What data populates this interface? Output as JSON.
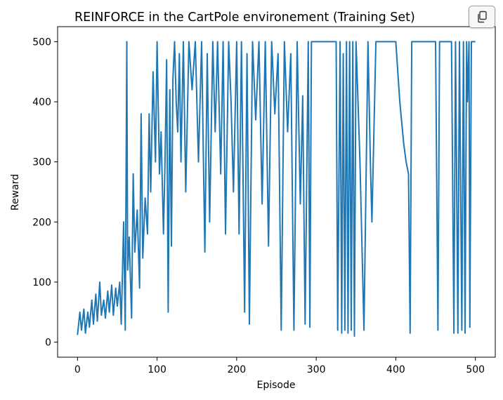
{
  "chart_data": {
    "type": "line",
    "title": "REINFORCE in the CartPole environement (Training Set)",
    "xlabel": "Episode",
    "ylabel": "Reward",
    "xlim": [
      -25,
      525
    ],
    "ylim": [
      -25,
      525
    ],
    "xticks": [
      0,
      100,
      200,
      300,
      400,
      500
    ],
    "yticks": [
      0,
      100,
      200,
      300,
      400,
      500
    ],
    "grid": false,
    "series": [
      {
        "color": "#1f77b4",
        "x": [
          0,
          3,
          5,
          8,
          10,
          13,
          15,
          18,
          20,
          23,
          25,
          28,
          30,
          33,
          35,
          38,
          40,
          43,
          45,
          48,
          50,
          53,
          55,
          58,
          60,
          62,
          63,
          65,
          68,
          70,
          72,
          75,
          78,
          80,
          82,
          85,
          88,
          90,
          92,
          95,
          98,
          100,
          103,
          105,
          108,
          110,
          112,
          114,
          116,
          118,
          120,
          122,
          124,
          126,
          128,
          130,
          133,
          136,
          140,
          144,
          148,
          152,
          156,
          160,
          163,
          166,
          170,
          173,
          176,
          180,
          183,
          186,
          190,
          193,
          196,
          200,
          203,
          206,
          210,
          213,
          216,
          220,
          224,
          228,
          232,
          236,
          240,
          244,
          248,
          252,
          256,
          260,
          264,
          268,
          272,
          276,
          280,
          283,
          286,
          290,
          292,
          294,
          300,
          310,
          320,
          325,
          327,
          330,
          332,
          334,
          336,
          338,
          340,
          342,
          344,
          346,
          348,
          350,
          355,
          360,
          365,
          368,
          370,
          375,
          380,
          385,
          395,
          400,
          405,
          410,
          413,
          416,
          418,
          420,
          425,
          430,
          440,
          450,
          453,
          455,
          460,
          470,
          473,
          475,
          478,
          480,
          483,
          485,
          487,
          489,
          490,
          492,
          493,
          495,
          500
        ],
        "y": [
          12,
          50,
          20,
          55,
          15,
          50,
          25,
          70,
          30,
          80,
          35,
          100,
          45,
          70,
          40,
          85,
          50,
          95,
          45,
          90,
          60,
          100,
          30,
          200,
          20,
          500,
          120,
          175,
          40,
          280,
          150,
          220,
          90,
          380,
          140,
          240,
          180,
          380,
          250,
          450,
          300,
          500,
          280,
          350,
          180,
          300,
          470,
          50,
          420,
          160,
          440,
          500,
          400,
          350,
          480,
          300,
          500,
          250,
          500,
          420,
          500,
          300,
          500,
          150,
          480,
          200,
          500,
          350,
          500,
          280,
          500,
          180,
          500,
          400,
          250,
          500,
          180,
          500,
          50,
          480,
          30,
          500,
          370,
          500,
          230,
          500,
          160,
          500,
          380,
          480,
          20,
          500,
          350,
          480,
          20,
          500,
          230,
          410,
          30,
          500,
          25,
          500,
          500,
          500,
          500,
          500,
          20,
          500,
          15,
          480,
          20,
          500,
          15,
          500,
          20,
          500,
          10,
          500,
          300,
          20,
          500,
          300,
          200,
          500,
          500,
          500,
          500,
          500,
          400,
          330,
          300,
          280,
          15,
          500,
          500,
          500,
          500,
          500,
          20,
          500,
          500,
          500,
          15,
          500,
          15,
          500,
          20,
          500,
          15,
          500,
          400,
          500,
          25,
          500,
          500
        ]
      }
    ]
  },
  "toolbar": {
    "copy_icon": "copy-icon"
  }
}
